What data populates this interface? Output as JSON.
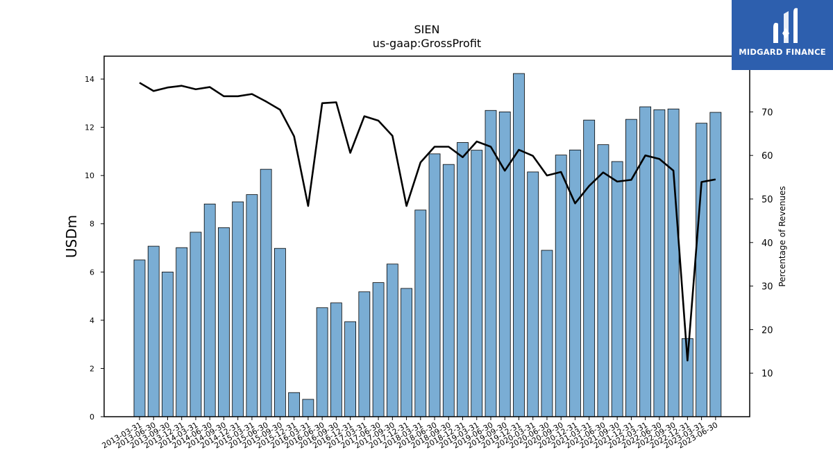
{
  "chart_data": {
    "type": "bar",
    "title": "SIEN",
    "subtitle": "us-gaap:GrossProfit",
    "ylabel": "USDm",
    "y2label": "Percentage of Revenues",
    "ylim": [
      0,
      14.95
    ],
    "y2lim": [
      0,
      82.8
    ],
    "yticks": [
      0,
      2,
      4,
      6,
      8,
      10,
      12,
      14
    ],
    "y2ticks": [
      10,
      20,
      30,
      40,
      50,
      60,
      70
    ],
    "bar_color": "#7aadd4",
    "line_color": "#000000",
    "categories": [
      "2013-03-31",
      "2013-06-30",
      "2013-09-30",
      "2013-12-31",
      "2014-03-31",
      "2014-06-30",
      "2014-09-30",
      "2014-12-31",
      "2015-03-31",
      "2015-06-30",
      "2015-09-30",
      "2015-12-31",
      "2016-03-31",
      "2016-06-30",
      "2016-09-30",
      "2016-12-31",
      "2017-03-31",
      "2017-06-30",
      "2017-09-30",
      "2017-12-31",
      "2018-03-31",
      "2018-06-30",
      "2018-09-30",
      "2018-12-31",
      "2019-03-31",
      "2019-06-30",
      "2019-09-30",
      "2019-12-31",
      "2020-03-31",
      "2020-06-30",
      "2020-09-30",
      "2020-12-31",
      "2021-03-31",
      "2021-06-30",
      "2021-09-30",
      "2021-12-31",
      "2022-03-31",
      "2022-06-30",
      "2022-09-30",
      "2022-12-31",
      "2023-03-31",
      "2023-06-30"
    ],
    "series": [
      {
        "kind": "bar",
        "axis": "left",
        "values": [
          6.5,
          7.07,
          6.0,
          7.01,
          7.65,
          8.82,
          7.84,
          8.91,
          9.21,
          10.26,
          6.98,
          1.0,
          0.72,
          4.52,
          4.72,
          3.94,
          5.18,
          5.56,
          6.33,
          5.32,
          8.57,
          10.9,
          10.46,
          11.37,
          11.05,
          12.7,
          12.64,
          14.23,
          10.15,
          6.9,
          10.85,
          11.06,
          12.3,
          11.28,
          10.58,
          12.33,
          12.85,
          12.73,
          12.76,
          3.24,
          12.17,
          12.62
        ]
      },
      {
        "kind": "line",
        "axis": "right",
        "values": [
          76.7,
          74.8,
          75.6,
          76.0,
          75.2,
          75.7,
          73.6,
          73.6,
          74.1,
          72.4,
          70.5,
          64.4,
          48.4,
          72.0,
          72.2,
          60.6,
          69.0,
          68.0,
          64.5,
          48.4,
          58.4,
          62.0,
          62.0,
          59.6,
          63.2,
          62.0,
          56.5,
          61.3,
          59.9,
          55.4,
          56.2,
          49.0,
          53.0,
          56.1,
          54.0,
          54.4,
          60.0,
          59.2,
          56.5,
          12.9,
          53.9,
          54.5
        ]
      }
    ]
  },
  "logo": {
    "text": "MIDGARD FINANCE",
    "background": "#2d5fae"
  }
}
